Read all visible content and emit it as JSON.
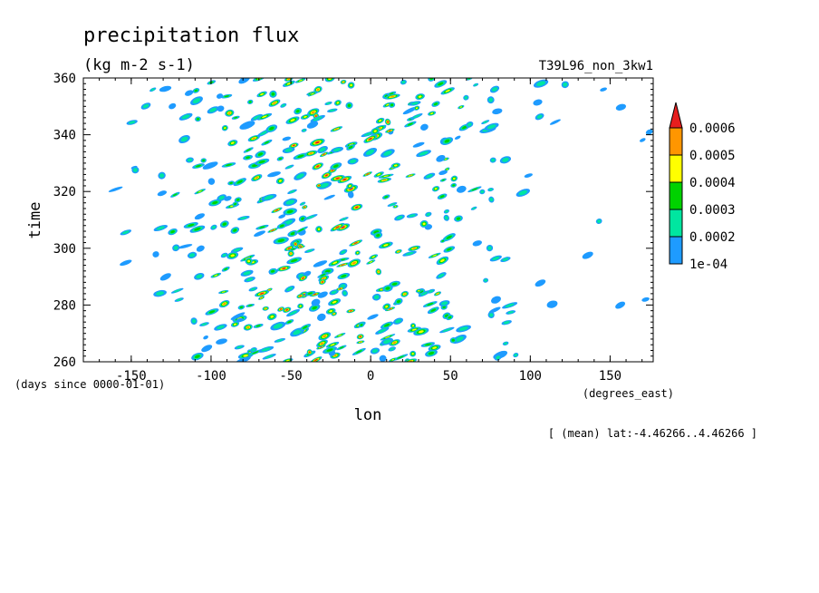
{
  "chart_data": {
    "type": "heatmap",
    "title": "precipitation flux",
    "subtitle": "(kg m-2 s-1)",
    "run_label": "T39L96_non_3kw1",
    "xlabel": "lon",
    "x_units": "(degrees_east)",
    "ylabel": "time",
    "y_units": "(days since 0000-01-01)",
    "note": "[ (mean) lat:-4.46266..4.46266 ]",
    "xlim": [
      -180,
      177
    ],
    "ylim": [
      260,
      360
    ],
    "x_ticks": [
      -150,
      -100,
      -50,
      0,
      50,
      100,
      150
    ],
    "x_tick_labels": [
      "-150",
      "-100",
      "-50",
      "0",
      "50",
      "100",
      "150"
    ],
    "y_ticks": [
      260,
      280,
      300,
      320,
      340,
      360
    ],
    "y_tick_labels": [
      "260",
      "280",
      "300",
      "320",
      "340",
      "360"
    ],
    "grid": false,
    "legend": "right",
    "colorbar": {
      "levels": [
        0.0001,
        0.0002,
        0.0003,
        0.0004,
        0.0005,
        0.0006
      ],
      "labels": [
        "1e-04",
        "0.0002",
        "0.0003",
        "0.0004",
        "0.0005",
        "0.0006"
      ],
      "colors": [
        "#1e9bff",
        "#00e6a0",
        "#00d200",
        "#ffff00",
        "#ff9600",
        "#e61e1e"
      ]
    }
  }
}
